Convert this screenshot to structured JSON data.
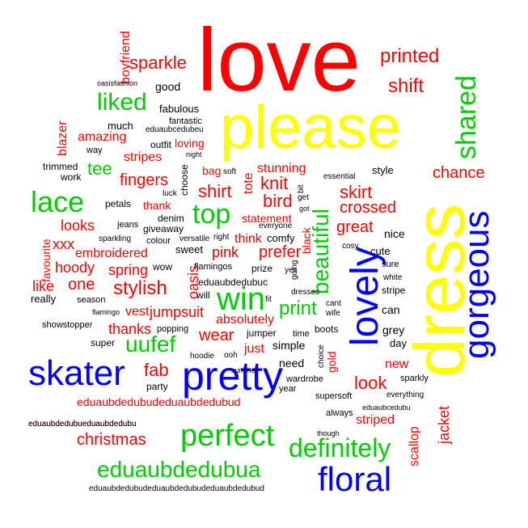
{
  "colors": {
    "red": "#ff0000",
    "yellow": "#ffff00",
    "green": "#00cc00",
    "blue": "#0000ff",
    "black": "#000000"
  },
  "words": [
    {
      "text": "love",
      "color": "red"
    },
    {
      "text": "please",
      "color": "yellow"
    },
    {
      "text": "dress",
      "color": "yellow"
    },
    {
      "text": "pretty",
      "color": "blue"
    },
    {
      "text": "skater",
      "color": "blue"
    },
    {
      "text": "gorgeous",
      "color": "blue"
    },
    {
      "text": "lovely",
      "color": "blue"
    },
    {
      "text": "floral",
      "color": "blue"
    },
    {
      "text": "perfect",
      "color": "green"
    },
    {
      "text": "definitely",
      "color": "green"
    },
    {
      "text": "eduaubdedubua",
      "color": "green"
    },
    {
      "text": "lace",
      "color": "green"
    },
    {
      "text": "top",
      "color": "green"
    },
    {
      "text": "win",
      "color": "green"
    },
    {
      "text": "liked",
      "color": "green"
    },
    {
      "text": "shared",
      "color": "green"
    },
    {
      "text": "beautiful",
      "color": "green"
    },
    {
      "text": "uufef",
      "color": "green"
    },
    {
      "text": "print",
      "color": "green"
    },
    {
      "text": "tee",
      "color": "green"
    },
    {
      "text": "printed",
      "color": "red"
    },
    {
      "text": "shift",
      "color": "red"
    },
    {
      "text": "sparkle",
      "color": "red"
    },
    {
      "text": "boyfriend",
      "color": "red"
    },
    {
      "text": "chance",
      "color": "red"
    },
    {
      "text": "skirt",
      "color": "red"
    },
    {
      "text": "crossed",
      "color": "red"
    },
    {
      "text": "stylish",
      "color": "red"
    },
    {
      "text": "shirt",
      "color": "red"
    },
    {
      "text": "knit",
      "color": "red"
    },
    {
      "text": "stunning",
      "color": "red"
    },
    {
      "text": "bird",
      "color": "red"
    },
    {
      "text": "prefer",
      "color": "red"
    },
    {
      "text": "great",
      "color": "red"
    },
    {
      "text": "fab",
      "color": "red"
    },
    {
      "text": "look",
      "color": "red"
    },
    {
      "text": "looks",
      "color": "red"
    },
    {
      "text": "fingers",
      "color": "red"
    },
    {
      "text": "christmas",
      "color": "red"
    },
    {
      "text": "eduaubdedubudeduaubdedubud",
      "color": "red"
    },
    {
      "text": "eduaubdedubueduaubdedubu",
      "color": "red"
    },
    {
      "text": "jacket",
      "color": "red"
    },
    {
      "text": "scallop",
      "color": "red"
    },
    {
      "text": "striped",
      "color": "red"
    },
    {
      "text": "new",
      "color": "red"
    },
    {
      "text": "gold",
      "color": "red"
    },
    {
      "text": "wear",
      "color": "red"
    },
    {
      "text": "thanks",
      "color": "red"
    },
    {
      "text": "just",
      "color": "red"
    },
    {
      "text": "absolutely",
      "color": "red"
    },
    {
      "text": "vest",
      "color": "red"
    },
    {
      "text": "jumpsuit",
      "color": "red"
    },
    {
      "text": "spring",
      "color": "red"
    },
    {
      "text": "hoody",
      "color": "red"
    },
    {
      "text": "like",
      "color": "red"
    },
    {
      "text": "one",
      "color": "red"
    },
    {
      "text": "xxx",
      "color": "red"
    },
    {
      "text": "embroidered",
      "color": "red"
    },
    {
      "text": "oasis",
      "color": "red"
    },
    {
      "text": "pink",
      "color": "red"
    },
    {
      "text": "think",
      "color": "red"
    },
    {
      "text": "statement",
      "color": "red"
    },
    {
      "text": "thank",
      "color": "red"
    },
    {
      "text": "tote",
      "color": "red"
    },
    {
      "text": "amazing",
      "color": "red"
    },
    {
      "text": "stripes",
      "color": "red"
    },
    {
      "text": "blazer",
      "color": "red"
    },
    {
      "text": "loving",
      "color": "red"
    },
    {
      "text": "bag",
      "color": "red"
    },
    {
      "text": "favourite",
      "color": "red"
    },
    {
      "text": "black",
      "color": "red"
    },
    {
      "text": "oasisfashion",
      "color": "black"
    },
    {
      "text": "good",
      "color": "black"
    },
    {
      "text": "fabulous",
      "color": "black"
    },
    {
      "text": "fantastic",
      "color": "black"
    },
    {
      "text": "much",
      "color": "black"
    },
    {
      "text": "eduaubcedubeu",
      "color": "black"
    },
    {
      "text": "outfit",
      "color": "black"
    },
    {
      "text": "way",
      "color": "black"
    },
    {
      "text": "night",
      "color": "black"
    },
    {
      "text": "trimmed",
      "color": "black"
    },
    {
      "text": "work",
      "color": "black"
    },
    {
      "text": "choose",
      "color": "black"
    },
    {
      "text": "soft",
      "color": "black"
    },
    {
      "text": "style",
      "color": "black"
    },
    {
      "text": "essential",
      "color": "black"
    },
    {
      "text": "bit",
      "color": "black"
    },
    {
      "text": "get",
      "color": "black"
    },
    {
      "text": "got",
      "color": "black"
    },
    {
      "text": "luck",
      "color": "black"
    },
    {
      "text": "petals",
      "color": "black"
    },
    {
      "text": "denim",
      "color": "black"
    },
    {
      "text": "jeans",
      "color": "black"
    },
    {
      "text": "giveaway",
      "color": "black"
    },
    {
      "text": "sparkling",
      "color": "black"
    },
    {
      "text": "colour",
      "color": "black"
    },
    {
      "text": "versatile",
      "color": "black"
    },
    {
      "text": "right",
      "color": "black"
    },
    {
      "text": "comfy",
      "color": "black"
    },
    {
      "text": "cosy",
      "color": "black"
    },
    {
      "text": "nice",
      "color": "black"
    },
    {
      "text": "cute",
      "color": "black"
    },
    {
      "text": "sure",
      "color": "black"
    },
    {
      "text": "white",
      "color": "black"
    },
    {
      "text": "stripe",
      "color": "black"
    },
    {
      "text": "can",
      "color": "black"
    },
    {
      "text": "grey",
      "color": "black"
    },
    {
      "text": "day",
      "color": "black"
    },
    {
      "text": "sweet",
      "color": "black"
    },
    {
      "text": "wow",
      "color": "black"
    },
    {
      "text": "flamingos",
      "color": "black"
    },
    {
      "text": "prize",
      "color": "black"
    },
    {
      "text": "going",
      "color": "black"
    },
    {
      "text": "eduaubdedubuc",
      "color": "black"
    },
    {
      "text": "dresses",
      "color": "black"
    },
    {
      "text": "cant",
      "color": "black"
    },
    {
      "text": "wife",
      "color": "black"
    },
    {
      "text": "really",
      "color": "black"
    },
    {
      "text": "season",
      "color": "black"
    },
    {
      "text": "will",
      "color": "black"
    },
    {
      "text": "fit",
      "color": "black"
    },
    {
      "text": "yes",
      "color": "black"
    },
    {
      "text": "flamingo",
      "color": "black"
    },
    {
      "text": "showstopper",
      "color": "black"
    },
    {
      "text": "popping",
      "color": "black"
    },
    {
      "text": "jumper",
      "color": "black"
    },
    {
      "text": "time",
      "color": "black"
    },
    {
      "text": "boots",
      "color": "black"
    },
    {
      "text": "super",
      "color": "black"
    },
    {
      "text": "hoodie",
      "color": "black"
    },
    {
      "text": "ooh",
      "color": "black"
    },
    {
      "text": "simple",
      "color": "black"
    },
    {
      "text": "need",
      "color": "black"
    },
    {
      "text": "choice",
      "color": "black"
    },
    {
      "text": "party",
      "color": "black"
    },
    {
      "text": "summer",
      "color": "black"
    },
    {
      "text": "year",
      "color": "black"
    },
    {
      "text": "wardrobe",
      "color": "black"
    },
    {
      "text": "sparkly",
      "color": "black"
    },
    {
      "text": "everything",
      "color": "black"
    },
    {
      "text": "supersoft",
      "color": "black"
    },
    {
      "text": "eduaubcedubu",
      "color": "black"
    },
    {
      "text": "always",
      "color": "black"
    },
    {
      "text": "though",
      "color": "black"
    },
    {
      "text": "eduaubdedubueduaubdedubu",
      "color": "black"
    },
    {
      "text": "eduaubdedubudeduaubdedubudeduaubdedubud",
      "color": "black"
    },
    {
      "text": "everyone",
      "color": "black"
    },
    {
      "text": "fashion",
      "color": "black"
    }
  ]
}
